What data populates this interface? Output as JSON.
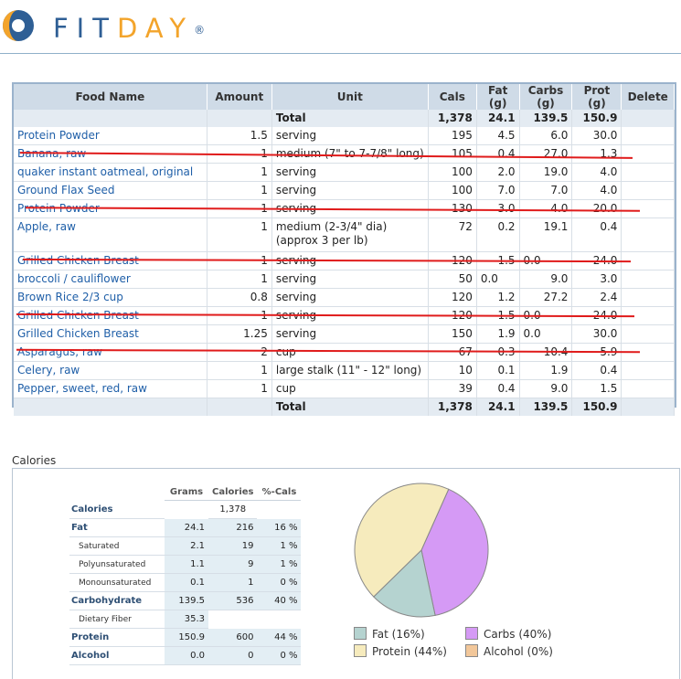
{
  "brand": {
    "fit": "FIT",
    "day": "DAY",
    "reg": "®"
  },
  "columns": [
    "Food Name",
    "Amount",
    "Unit",
    "Cals",
    "Fat (g)",
    "Carbs (g)",
    "Prot (g)",
    "Delete"
  ],
  "total_label": "Total",
  "totals": {
    "cals": "1,378",
    "fat": "24.1",
    "carbs": "139.5",
    "prot": "150.9"
  },
  "foods": [
    {
      "name": "Protein Powder",
      "amount": "1.5",
      "unit": "serving",
      "cals": "195",
      "fat": "4.5",
      "carbs": "6.0",
      "prot": "30.0"
    },
    {
      "name": "Banana, raw",
      "amount": "1",
      "unit": "medium (7\" to 7-7/8\" long)",
      "cals": "105",
      "fat": "0.4",
      "carbs": "27.0",
      "prot": "1.3"
    },
    {
      "name": "quaker instant oatmeal, original",
      "amount": "1",
      "unit": "serving",
      "cals": "100",
      "fat": "2.0",
      "carbs": "19.0",
      "prot": "4.0"
    },
    {
      "name": "Ground Flax Seed",
      "amount": "1",
      "unit": "serving",
      "cals": "100",
      "fat": "7.0",
      "carbs": "7.0",
      "prot": "4.0"
    },
    {
      "name": "Protein Powder",
      "amount": "1",
      "unit": "serving",
      "cals": "130",
      "fat": "3.0",
      "carbs": "4.0",
      "prot": "20.0"
    },
    {
      "name": "Apple, raw",
      "amount": "1",
      "unit": "medium (2-3/4\" dia)",
      "unit2": "(approx 3 per lb)",
      "cals": "72",
      "fat": "0.2",
      "carbs": "19.1",
      "prot": "0.4"
    },
    {
      "name": "Grilled Chicken Breast",
      "amount": "1",
      "unit": "serving",
      "cals": "120",
      "fat": "1.5",
      "carbs": "0.0",
      "prot": "24.0"
    },
    {
      "name": "broccoli / cauliflower",
      "amount": "1",
      "unit": "serving",
      "cals": "50",
      "fat": "0.0",
      "carbs": "9.0",
      "prot": "3.0"
    },
    {
      "name": "Brown Rice 2/3 cup",
      "amount": "0.8",
      "unit": "serving",
      "cals": "120",
      "fat": "1.2",
      "carbs": "27.2",
      "prot": "2.4"
    },
    {
      "name": "Grilled Chicken Breast",
      "amount": "1",
      "unit": "serving",
      "cals": "120",
      "fat": "1.5",
      "carbs": "0.0",
      "prot": "24.0"
    },
    {
      "name": "Grilled Chicken Breast",
      "amount": "1.25",
      "unit": "serving",
      "cals": "150",
      "fat": "1.9",
      "carbs": "0.0",
      "prot": "30.0"
    },
    {
      "name": "Asparagus, raw",
      "amount": "2",
      "unit": "cup",
      "cals": "67",
      "fat": "0.3",
      "carbs": "10.4",
      "prot": "5.9"
    },
    {
      "name": "Celery, raw",
      "amount": "1",
      "unit": "large stalk (11\" - 12\" long)",
      "cals": "10",
      "fat": "0.1",
      "carbs": "1.9",
      "prot": "0.4"
    },
    {
      "name": "Pepper, sweet, red, raw",
      "amount": "1",
      "unit": "cup",
      "cals": "39",
      "fat": "0.4",
      "carbs": "9.0",
      "prot": "1.5"
    }
  ],
  "calories_section": {
    "title": "Calories",
    "headers": [
      "Grams",
      "Calories",
      "%-Cals"
    ],
    "rows": [
      {
        "label": "Calories",
        "grams": "",
        "cals": "1,378",
        "pct": "",
        "sub": false
      },
      {
        "label": "Fat",
        "grams": "24.1",
        "cals": "216",
        "pct": "16 %",
        "sub": false
      },
      {
        "label": "Saturated",
        "grams": "2.1",
        "cals": "19",
        "pct": "1 %",
        "sub": true
      },
      {
        "label": "Polyunsaturated",
        "grams": "1.1",
        "cals": "9",
        "pct": "1 %",
        "sub": true
      },
      {
        "label": "Monounsaturated",
        "grams": "0.1",
        "cals": "1",
        "pct": "0 %",
        "sub": true
      },
      {
        "label": "Carbohydrate",
        "grams": "139.5",
        "cals": "536",
        "pct": "40 %",
        "sub": false
      },
      {
        "label": "Dietary Fiber",
        "grams": "35.3",
        "cals": "",
        "pct": "",
        "sub": true
      },
      {
        "label": "Protein",
        "grams": "150.9",
        "cals": "600",
        "pct": "44 %",
        "sub": false
      },
      {
        "label": "Alcohol",
        "grams": "0.0",
        "cals": "0",
        "pct": "0 %",
        "sub": false
      }
    ]
  },
  "chart_data": {
    "type": "pie",
    "slices": [
      {
        "label": "Carbs",
        "value": 40,
        "color": "#d59af5"
      },
      {
        "label": "Fat",
        "value": 16,
        "color": "#b5d3d0"
      },
      {
        "label": "Protein",
        "value": 44,
        "color": "#f6ebbd"
      },
      {
        "label": "Alcohol",
        "value": 0,
        "color": "#f2c79a"
      }
    ],
    "legend": [
      {
        "text": "Fat  (16%)",
        "color": "#b5d3d0"
      },
      {
        "text": "Carbs  (40%)",
        "color": "#d59af5"
      },
      {
        "text": "Protein  (44%)",
        "color": "#f6ebbd"
      },
      {
        "text": "Alcohol  (0%)",
        "color": "#f2c79a"
      }
    ]
  }
}
